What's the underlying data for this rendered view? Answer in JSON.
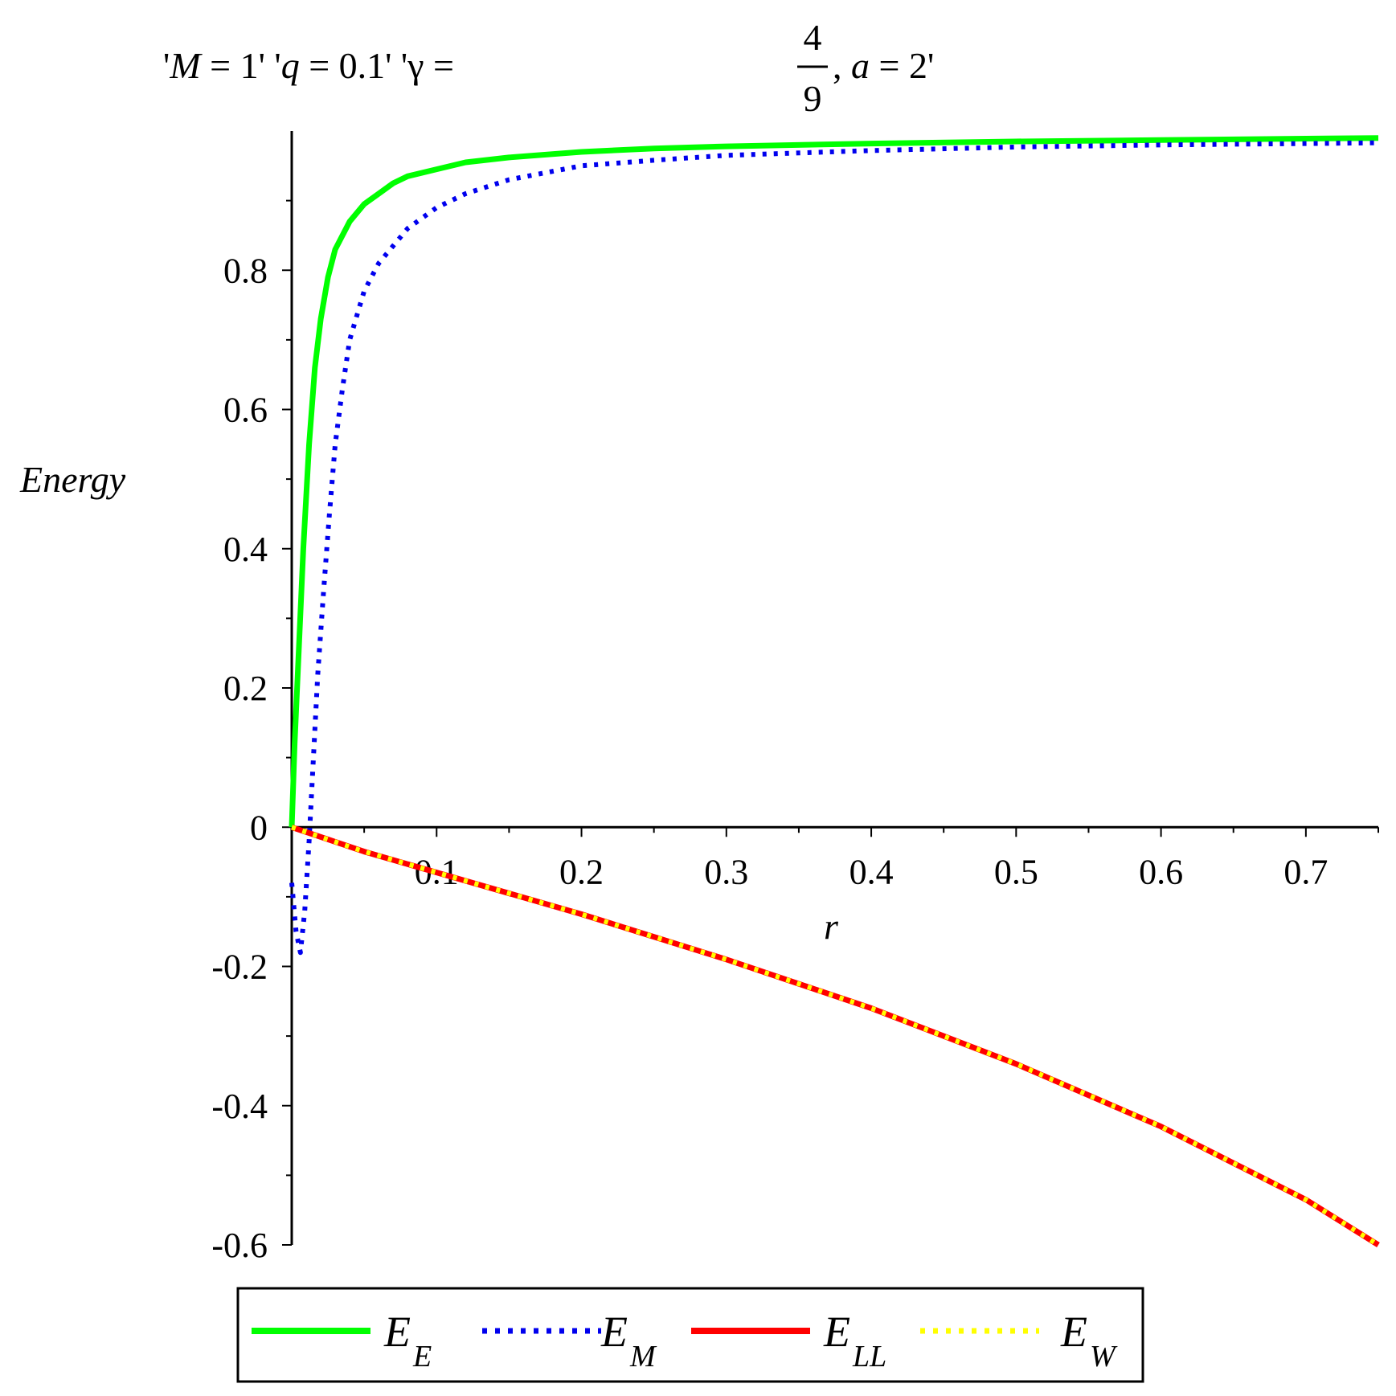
{
  "chart_data": {
    "type": "line",
    "title": {
      "p1": "'",
      "p2": "M",
      "p3": " = 1' '",
      "p4": "q",
      "p5": " = 0.1' 'γ = ",
      "frac_num": "4",
      "frac_den": "9",
      "p6": ", ",
      "p7": "a",
      "p8": " = 2'"
    },
    "xlabel": "r",
    "ylabel": "Energy",
    "xlim": [
      0,
      0.75
    ],
    "ylim": [
      -0.6,
      1.0
    ],
    "x_ticks": [
      "0.1",
      "0.2",
      "0.3",
      "0.4",
      "0.5",
      "0.6",
      "0.7"
    ],
    "y_ticks": [
      "-0.6",
      "-0.4",
      "-0.2",
      "0",
      "0.2",
      "0.4",
      "0.6",
      "0.8"
    ],
    "grid": false,
    "legend_position": "bottom",
    "series": [
      {
        "name": "E",
        "sub": "E",
        "color": "#00ff00",
        "style": "solid",
        "x": [
          0,
          0.002,
          0.005,
          0.008,
          0.012,
          0.016,
          0.02,
          0.025,
          0.03,
          0.04,
          0.05,
          0.06,
          0.07,
          0.08,
          0.1,
          0.12,
          0.15,
          0.2,
          0.25,
          0.3,
          0.4,
          0.5,
          0.6,
          0.7,
          0.75
        ],
        "y": [
          0,
          0.12,
          0.26,
          0.4,
          0.55,
          0.66,
          0.73,
          0.79,
          0.83,
          0.87,
          0.895,
          0.91,
          0.925,
          0.935,
          0.945,
          0.955,
          0.962,
          0.97,
          0.975,
          0.978,
          0.982,
          0.985,
          0.987,
          0.989,
          0.99
        ]
      },
      {
        "name": "E",
        "sub": "M",
        "color": "#0000ee",
        "style": "dotted",
        "x": [
          0,
          0.003,
          0.006,
          0.009,
          0.012,
          0.015,
          0.018,
          0.022,
          0.026,
          0.03,
          0.035,
          0.04,
          0.05,
          0.06,
          0.08,
          0.1,
          0.12,
          0.15,
          0.2,
          0.25,
          0.3,
          0.4,
          0.5,
          0.6,
          0.7,
          0.75
        ],
        "y": [
          -0.08,
          -0.15,
          -0.18,
          -0.12,
          -0.02,
          0.1,
          0.22,
          0.34,
          0.45,
          0.55,
          0.63,
          0.7,
          0.77,
          0.81,
          0.86,
          0.89,
          0.91,
          0.93,
          0.95,
          0.958,
          0.965,
          0.972,
          0.977,
          0.98,
          0.982,
          0.983
        ]
      },
      {
        "name": "E",
        "sub": "LL",
        "color": "#ff0000",
        "style": "solid",
        "x": [
          0,
          0.05,
          0.1,
          0.2,
          0.3,
          0.4,
          0.5,
          0.6,
          0.7,
          0.75
        ],
        "y": [
          0,
          -0.035,
          -0.065,
          -0.125,
          -0.19,
          -0.26,
          -0.34,
          -0.43,
          -0.535,
          -0.6
        ]
      },
      {
        "name": "E",
        "sub": "W",
        "color": "#ffff00",
        "style": "dotted",
        "x": [
          0,
          0.05,
          0.1,
          0.2,
          0.3,
          0.4,
          0.5,
          0.6,
          0.7,
          0.75
        ],
        "y": [
          0,
          -0.035,
          -0.065,
          -0.125,
          -0.19,
          -0.26,
          -0.34,
          -0.43,
          -0.535,
          -0.6
        ]
      }
    ]
  }
}
